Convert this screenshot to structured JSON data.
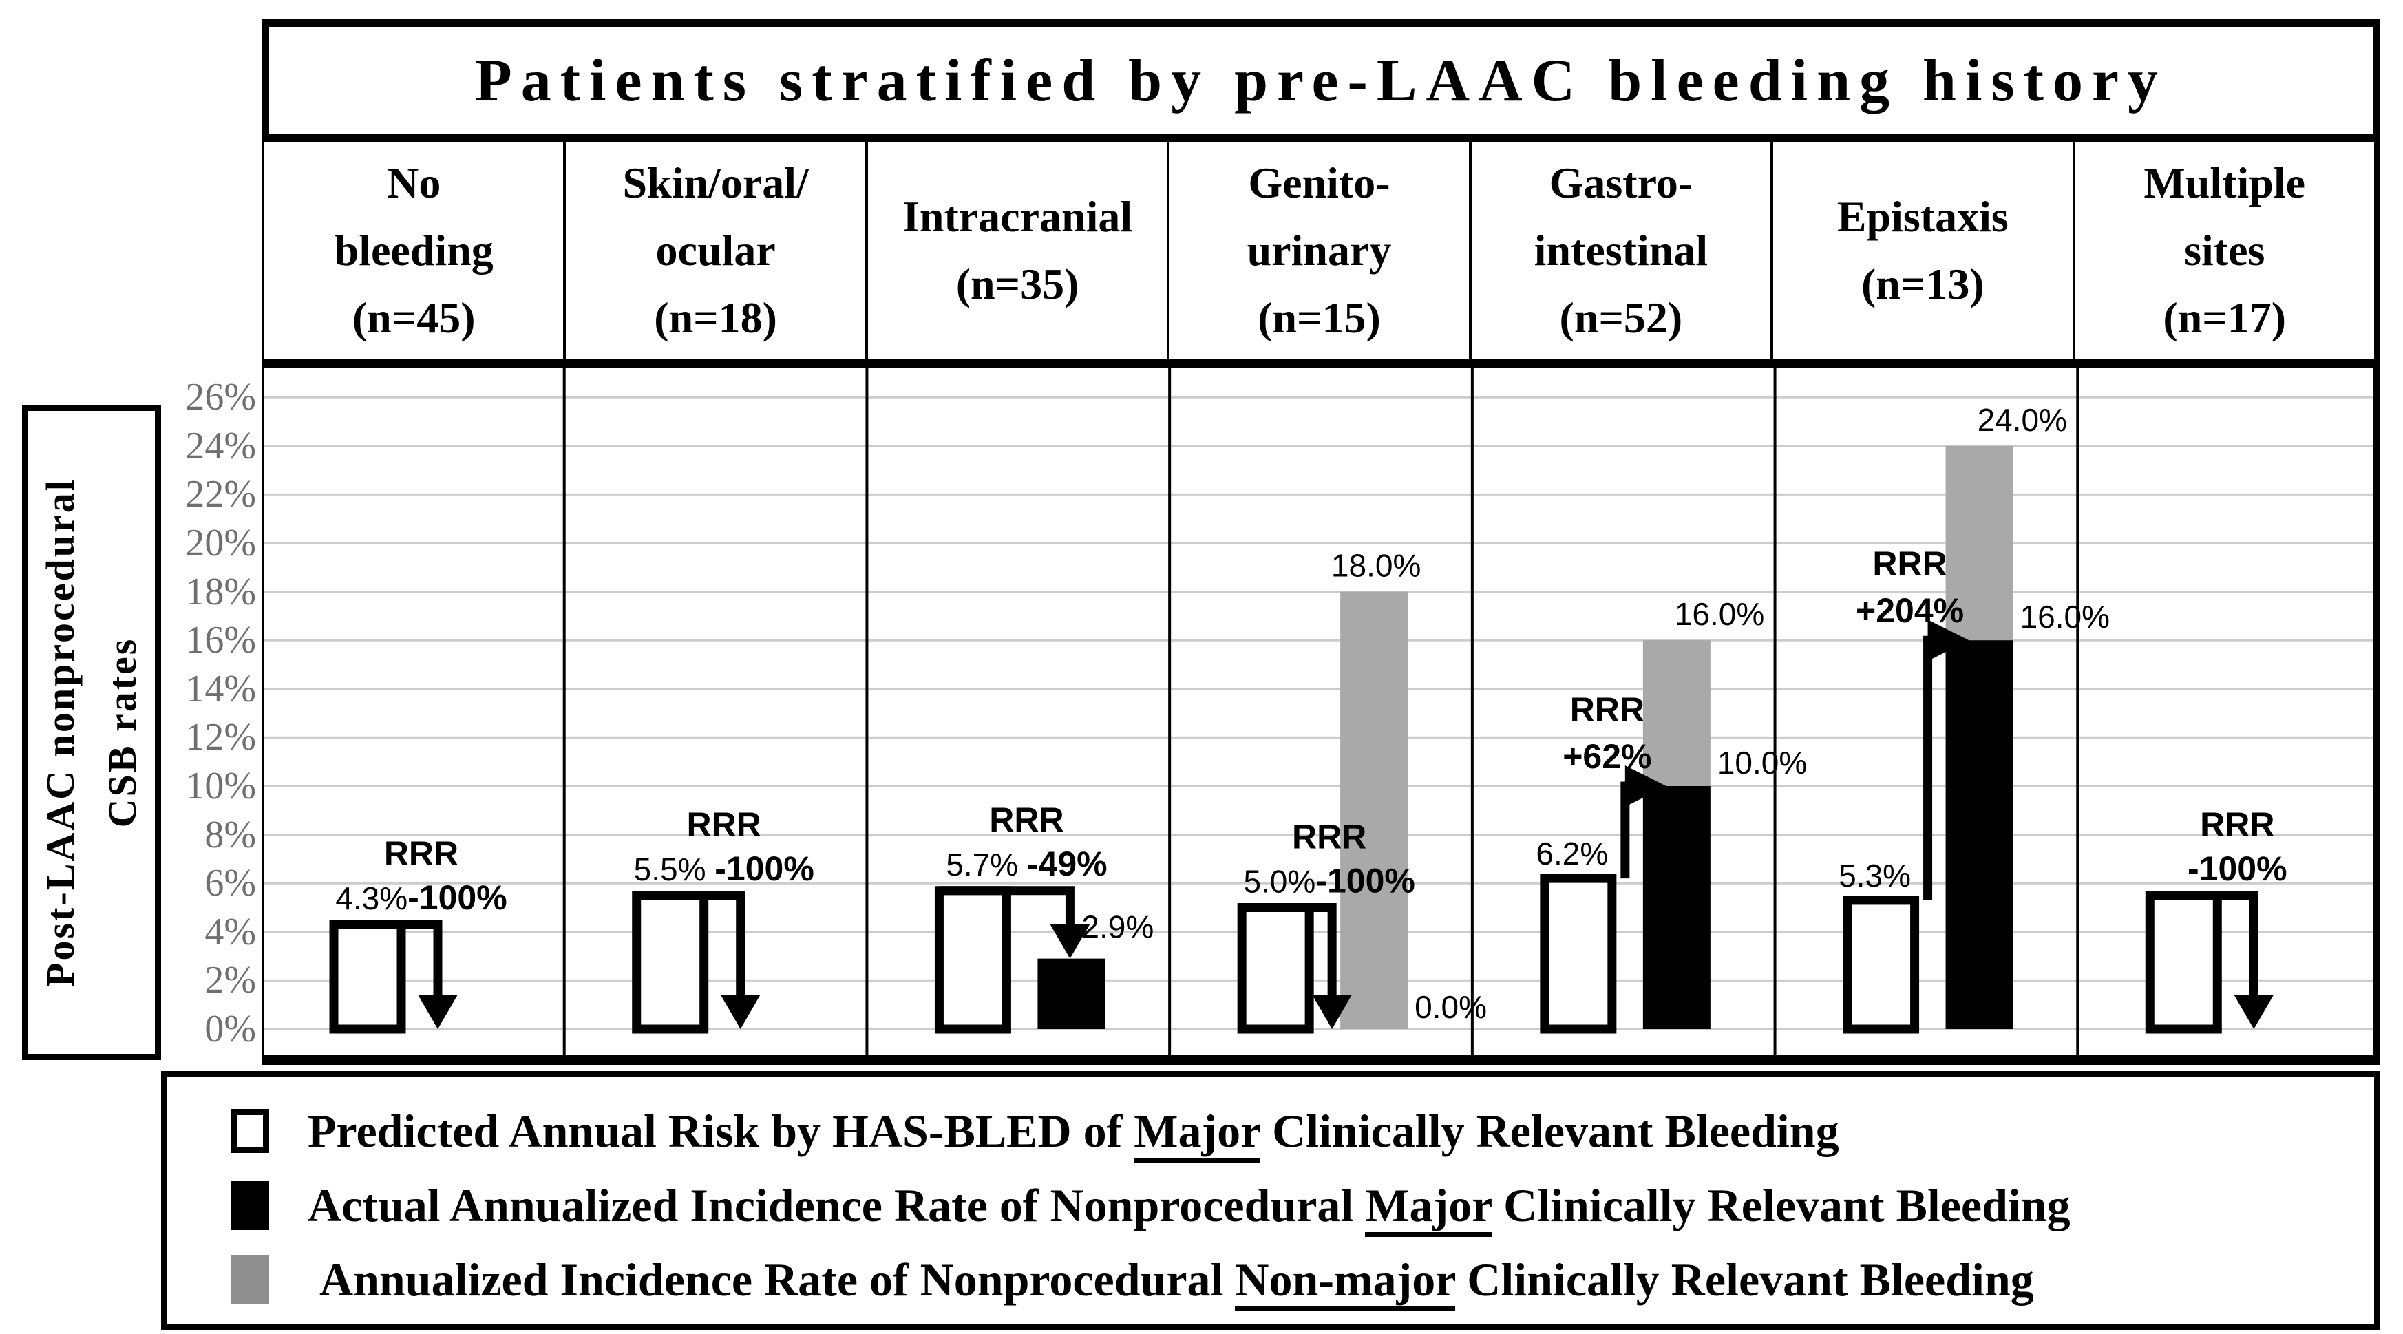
{
  "title": "Patients stratified by pre-LAAC bleeding history",
  "y_axis": {
    "label": "Post-LAAC nonprocedural\nCSB rates",
    "min": 0,
    "max": 26,
    "step": 2,
    "tick_suffix": "%"
  },
  "header": {
    "columns": [
      {
        "label": "No\nbleeding\n(n=45)"
      },
      {
        "label": "Skin/oral/\nocular\n(n=18)"
      },
      {
        "label": "Intracranial\n(n=35)"
      },
      {
        "label": "Genito-\nurinary\n(n=15)"
      },
      {
        "label": "Gastro-\nintestinal\n(n=52)"
      },
      {
        "label": "Epistaxis\n(n=13)"
      },
      {
        "label": "Multiple\nsites\n(n=17)"
      }
    ]
  },
  "chart_data": {
    "type": "bar",
    "title": "Patients stratified by pre-LAAC bleeding history",
    "xlabel": "Pre-LAAC bleeding history",
    "ylabel": "Post-LAAC nonprocedural CSB rates",
    "ylim": [
      0,
      26
    ],
    "ytick_step": 2,
    "grid": true,
    "legend_position": "bottom",
    "categories": [
      "No bleeding (n=45)",
      "Skin/oral/ocular (n=18)",
      "Intracranial (n=35)",
      "Genito-urinary (n=15)",
      "Gastro-intestinal (n=52)",
      "Epistaxis (n=13)",
      "Multiple sites (n=17)"
    ],
    "series": [
      {
        "name": "Predicted Annual Risk by HAS-BLED of Major Clinically Relevant Bleeding",
        "values": [
          4.3,
          5.5,
          5.7,
          5.0,
          6.2,
          5.3,
          5.5
        ]
      },
      {
        "name": "Actual Annualized Incidence Rate of Nonprocedural Major Clinically Relevant Bleeding",
        "values": [
          0.0,
          0.0,
          2.9,
          0.0,
          10.0,
          16.0,
          0.0
        ]
      },
      {
        "name": "Annualized Incidence Rate of Nonprocedural Non-major Clinically Relevant Bleeding (segment height)",
        "values": [
          0,
          0,
          0,
          18.0,
          6.0,
          8.0,
          0
        ]
      }
    ],
    "groups": [
      {
        "category": "No bleeding (n=45)",
        "predicted": 4.3,
        "predicted_label": "4.3%",
        "rrr_title": "RRR",
        "rrr": "-100%",
        "actual": 0,
        "actual_label": "",
        "nonmajor_top": null,
        "nonmajor_label": "",
        "arrow": "down"
      },
      {
        "category": "Skin/oral/ocular (n=18)",
        "predicted": 5.5,
        "predicted_label": "5.5% ",
        "rrr_title": "RRR",
        "rrr": "-100%",
        "actual": 0,
        "actual_label": "",
        "nonmajor_top": null,
        "nonmajor_label": "",
        "arrow": "down"
      },
      {
        "category": "Intracranial (n=35)",
        "predicted": 5.7,
        "predicted_label": "5.7% ",
        "rrr_title": "RRR",
        "rrr": "-49%",
        "actual": 2.9,
        "actual_label": "2.9%",
        "nonmajor_top": null,
        "nonmajor_label": "",
        "arrow": "down"
      },
      {
        "category": "Genito-urinary (n=15)",
        "predicted": 5.0,
        "predicted_label": "5.0%",
        "rrr_title": "RRR",
        "rrr": "-100%",
        "actual": 0,
        "actual_label": "0.0%",
        "nonmajor_top": 18.0,
        "nonmajor_label": "18.0%",
        "arrow": "down"
      },
      {
        "category": "Gastro-intestinal (n=52)",
        "predicted": 6.2,
        "predicted_label": "6.2%",
        "rrr_title": "RRR",
        "rrr": "+62%",
        "actual": 10.0,
        "actual_label": "10.0%",
        "nonmajor_top": 16.0,
        "nonmajor_label": "16.0%",
        "arrow": "up"
      },
      {
        "category": "Epistaxis (n=13)",
        "predicted": 5.3,
        "predicted_label": "5.3%",
        "rrr_title": "RRR",
        "rrr": "+204%",
        "actual": 16.0,
        "actual_label": "16.0%",
        "nonmajor_top": 24.0,
        "nonmajor_label": "24.0%",
        "arrow": "up"
      },
      {
        "category": "Multiple sites (n=17)",
        "predicted": 5.5,
        "predicted_label": "",
        "rrr_title": "RRR",
        "rrr": "-100%",
        "actual": 0,
        "actual_label": "",
        "nonmajor_top": null,
        "nonmajor_label": "",
        "arrow": "down"
      }
    ]
  },
  "legend": {
    "items": [
      {
        "swatch": "predicted-white",
        "prefix": "Predicted Annual Risk by HAS-BLED of ",
        "underlined": "Major",
        "suffix": " Clinically Relevant Bleeding"
      },
      {
        "swatch": "actual-black",
        "prefix": "Actual Annualized Incidence Rate of Nonprocedural ",
        "underlined": "Major",
        "suffix": " Clinically Relevant Bleeding"
      },
      {
        "swatch": "nonmajor-gray",
        "prefix": " Annualized Incidence Rate of Nonprocedural ",
        "underlined": "Non-major",
        "suffix": " Clinically Relevant Bleeding"
      }
    ]
  },
  "colors": {
    "nonmajor_gray": "#a9a9a9",
    "legend_gray": "#8f8f8f",
    "tick_text": "#6f6f6f",
    "gridline": "#cccccc",
    "black": "#000000",
    "white": "#ffffff"
  }
}
